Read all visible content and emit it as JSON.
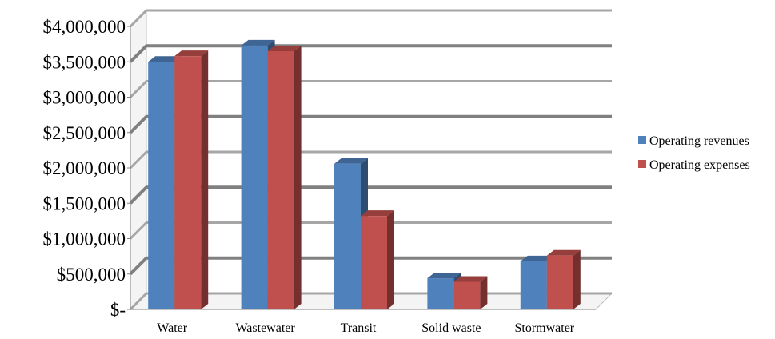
{
  "chart_data": {
    "type": "bar",
    "title": "",
    "xlabel": "",
    "ylabel": "",
    "categories": [
      "Water",
      "Wastewater",
      "Transit",
      "Solid waste",
      "Stormwater"
    ],
    "series": [
      {
        "name": "Operating revenues",
        "color": "#4F81BD",
        "values": [
          3500000,
          3730000,
          2060000,
          440000,
          680000
        ]
      },
      {
        "name": "Operating expenses",
        "color": "#C0504D",
        "values": [
          3580000,
          3650000,
          1320000,
          390000,
          760000
        ]
      }
    ],
    "ylim": [
      0,
      4000000
    ],
    "yticks": [
      0,
      500000,
      1000000,
      1500000,
      2000000,
      2500000,
      3000000,
      3500000,
      4000000
    ],
    "ytick_labels": [
      "$-",
      "$500,000",
      "$1,000,000",
      "$1,500,000",
      "$2,000,000",
      "$2,500,000",
      "$3,000,000",
      "$3,500,000",
      "$4,000,000"
    ],
    "grid": true,
    "legend_position": "right",
    "style": "3d-clustered-column"
  }
}
